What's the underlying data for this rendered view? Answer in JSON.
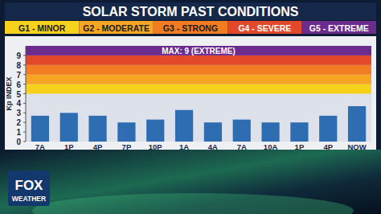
{
  "chart_data": {
    "type": "bar",
    "title": "SOLAR STORM PAST CONDITIONS",
    "y_label": "Kp INDEX",
    "categories": [
      "7A",
      "1P",
      "4P",
      "7P",
      "10P",
      "1A",
      "4A",
      "7A",
      "10A",
      "1P",
      "4P",
      "NOW"
    ],
    "values": [
      2.7,
      3.0,
      2.7,
      2.0,
      2.3,
      3.3,
      2.0,
      2.3,
      2.0,
      2.0,
      2.7,
      3.7
    ],
    "color": "#2f6db3",
    "ylim": [
      0,
      10
    ],
    "yticks": [
      0,
      1,
      2,
      3,
      4,
      5,
      6,
      7,
      8,
      9
    ],
    "grid": false,
    "scale_levels": [
      {
        "label": "G1 - MINOR",
        "from": 5,
        "to": 6,
        "color": "#f6d21c"
      },
      {
        "label": "G2 - MODERATE",
        "from": 6,
        "to": 7,
        "color": "#f6a623"
      },
      {
        "label": "G3 - STRONG",
        "from": 7,
        "to": 8,
        "color": "#f27c22"
      },
      {
        "label": "G4 - SEVERE",
        "from": 8,
        "to": 9,
        "color": "#e2492b"
      },
      {
        "label": "G5 - EXTREME",
        "from": 9,
        "to": 10,
        "color": "#6b2c8e"
      }
    ],
    "annotation": "MAX: 9 (EXTREME)",
    "brand": [
      "FOX",
      "WEATHER"
    ]
  }
}
